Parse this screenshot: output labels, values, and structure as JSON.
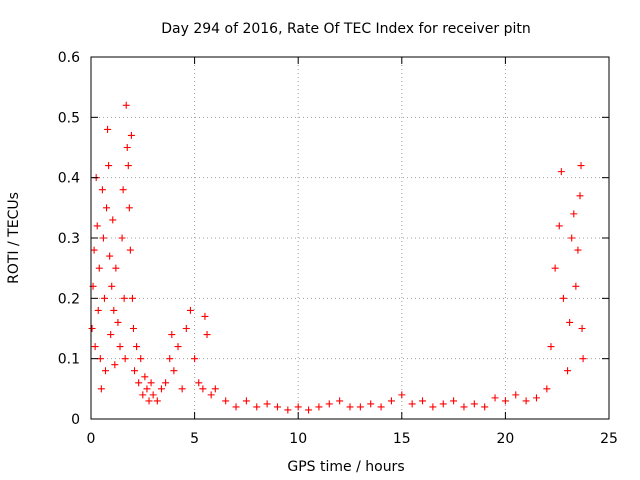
{
  "chart_data": {
    "type": "scatter",
    "title": "Day 294 of 2016, Rate Of TEC Index for receiver pitn",
    "xlabel": "GPS time / hours",
    "ylabel": "ROTI / TECUs",
    "xlim": [
      0,
      25
    ],
    "ylim": [
      0,
      0.6
    ],
    "xticks": [
      0,
      5,
      10,
      15,
      20,
      25
    ],
    "xtick_labels": [
      "0",
      "5",
      "10",
      "15",
      "20",
      "25"
    ],
    "yticks": [
      0,
      0.1,
      0.2,
      0.3,
      0.4,
      0.5,
      0.6
    ],
    "ytick_labels": [
      "0",
      "0.1",
      "0.2",
      "0.3",
      "0.4",
      "0.5",
      "0.6"
    ],
    "grid": true,
    "marker": "+",
    "color": "#ff0000",
    "series": [
      {
        "name": "pitn",
        "points": [
          [
            0.05,
            0.15
          ],
          [
            0.1,
            0.22
          ],
          [
            0.15,
            0.28
          ],
          [
            0.2,
            0.12
          ],
          [
            0.25,
            0.4
          ],
          [
            0.3,
            0.32
          ],
          [
            0.35,
            0.18
          ],
          [
            0.4,
            0.25
          ],
          [
            0.45,
            0.1
          ],
          [
            0.5,
            0.05
          ],
          [
            0.55,
            0.38
          ],
          [
            0.6,
            0.3
          ],
          [
            0.65,
            0.2
          ],
          [
            0.7,
            0.08
          ],
          [
            0.75,
            0.35
          ],
          [
            0.8,
            0.48
          ],
          [
            0.85,
            0.42
          ],
          [
            0.9,
            0.27
          ],
          [
            0.95,
            0.14
          ],
          [
            1.0,
            0.22
          ],
          [
            1.05,
            0.33
          ],
          [
            1.1,
            0.18
          ],
          [
            1.15,
            0.09
          ],
          [
            1.2,
            0.25
          ],
          [
            1.3,
            0.16
          ],
          [
            1.4,
            0.12
          ],
          [
            1.5,
            0.3
          ],
          [
            1.55,
            0.38
          ],
          [
            1.6,
            0.2
          ],
          [
            1.65,
            0.1
          ],
          [
            1.7,
            0.52
          ],
          [
            1.75,
            0.45
          ],
          [
            1.8,
            0.42
          ],
          [
            1.85,
            0.35
          ],
          [
            1.9,
            0.28
          ],
          [
            1.95,
            0.47
          ],
          [
            2.0,
            0.2
          ],
          [
            2.05,
            0.15
          ],
          [
            2.1,
            0.08
          ],
          [
            2.2,
            0.12
          ],
          [
            2.3,
            0.06
          ],
          [
            2.4,
            0.1
          ],
          [
            2.5,
            0.04
          ],
          [
            2.6,
            0.07
          ],
          [
            2.7,
            0.05
          ],
          [
            2.8,
            0.03
          ],
          [
            2.9,
            0.06
          ],
          [
            3.0,
            0.04
          ],
          [
            3.2,
            0.03
          ],
          [
            3.4,
            0.05
          ],
          [
            3.6,
            0.06
          ],
          [
            3.8,
            0.1
          ],
          [
            3.9,
            0.14
          ],
          [
            4.0,
            0.08
          ],
          [
            4.2,
            0.12
          ],
          [
            4.4,
            0.05
          ],
          [
            4.6,
            0.15
          ],
          [
            4.8,
            0.18
          ],
          [
            5.0,
            0.1
          ],
          [
            5.2,
            0.06
          ],
          [
            5.4,
            0.05
          ],
          [
            5.5,
            0.17
          ],
          [
            5.6,
            0.14
          ],
          [
            5.8,
            0.04
          ],
          [
            6.0,
            0.05
          ],
          [
            6.5,
            0.03
          ],
          [
            7.0,
            0.02
          ],
          [
            7.5,
            0.03
          ],
          [
            8.0,
            0.02
          ],
          [
            8.5,
            0.025
          ],
          [
            9.0,
            0.02
          ],
          [
            9.5,
            0.015
          ],
          [
            10.0,
            0.02
          ],
          [
            10.5,
            0.015
          ],
          [
            11.0,
            0.02
          ],
          [
            11.5,
            0.025
          ],
          [
            12.0,
            0.03
          ],
          [
            12.5,
            0.02
          ],
          [
            13.0,
            0.02
          ],
          [
            13.5,
            0.025
          ],
          [
            14.0,
            0.02
          ],
          [
            14.5,
            0.03
          ],
          [
            15.0,
            0.04
          ],
          [
            15.5,
            0.025
          ],
          [
            16.0,
            0.03
          ],
          [
            16.5,
            0.02
          ],
          [
            17.0,
            0.025
          ],
          [
            17.5,
            0.03
          ],
          [
            18.0,
            0.02
          ],
          [
            18.5,
            0.025
          ],
          [
            19.0,
            0.02
          ],
          [
            19.5,
            0.035
          ],
          [
            20.0,
            0.03
          ],
          [
            20.5,
            0.04
          ],
          [
            21.0,
            0.03
          ],
          [
            21.5,
            0.035
          ],
          [
            22.0,
            0.05
          ],
          [
            22.2,
            0.12
          ],
          [
            22.4,
            0.25
          ],
          [
            22.6,
            0.32
          ],
          [
            22.7,
            0.41
          ],
          [
            22.8,
            0.2
          ],
          [
            23.0,
            0.08
          ],
          [
            23.1,
            0.16
          ],
          [
            23.2,
            0.3
          ],
          [
            23.3,
            0.34
          ],
          [
            23.4,
            0.22
          ],
          [
            23.5,
            0.28
          ],
          [
            23.6,
            0.37
          ],
          [
            23.65,
            0.42
          ],
          [
            23.7,
            0.15
          ],
          [
            23.75,
            0.1
          ]
        ]
      }
    ]
  }
}
